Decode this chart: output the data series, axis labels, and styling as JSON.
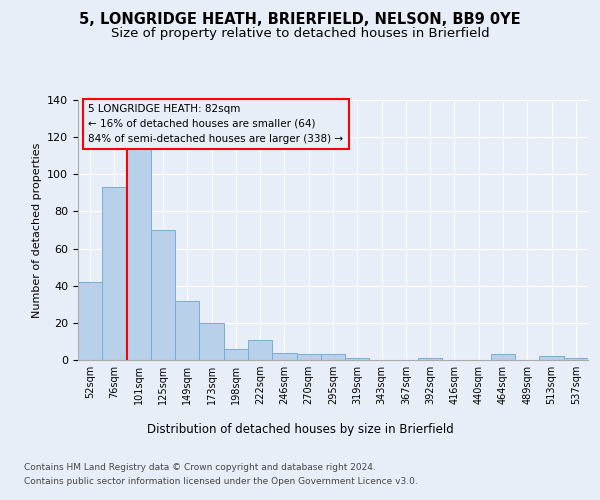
{
  "title1": "5, LONGRIDGE HEATH, BRIERFIELD, NELSON, BB9 0YE",
  "title2": "Size of property relative to detached houses in Brierfield",
  "xlabel": "Distribution of detached houses by size in Brierfield",
  "ylabel": "Number of detached properties",
  "categories": [
    "52sqm",
    "76sqm",
    "101sqm",
    "125sqm",
    "149sqm",
    "173sqm",
    "198sqm",
    "222sqm",
    "246sqm",
    "270sqm",
    "295sqm",
    "319sqm",
    "343sqm",
    "367sqm",
    "392sqm",
    "416sqm",
    "440sqm",
    "464sqm",
    "489sqm",
    "513sqm",
    "537sqm"
  ],
  "values": [
    42,
    93,
    116,
    70,
    32,
    20,
    6,
    11,
    4,
    3,
    3,
    1,
    0,
    0,
    1,
    0,
    0,
    3,
    0,
    2,
    1
  ],
  "bar_color": "#b8d0ea",
  "bar_edge_color": "#7aacd4",
  "annotation_line1": "5 LONGRIDGE HEATH: 82sqm",
  "annotation_line2": "← 16% of detached houses are smaller (64)",
  "annotation_line3": "84% of semi-detached houses are larger (338) →",
  "footnote1": "Contains HM Land Registry data © Crown copyright and database right 2024.",
  "footnote2": "Contains public sector information licensed under the Open Government Licence v3.0.",
  "background_color": "#e8eef8",
  "ylim": [
    0,
    140
  ],
  "yticks": [
    0,
    20,
    40,
    60,
    80,
    100,
    120,
    140
  ],
  "red_line_bin_index": 1,
  "title_fontsize": 10.5,
  "subtitle_fontsize": 9.5
}
